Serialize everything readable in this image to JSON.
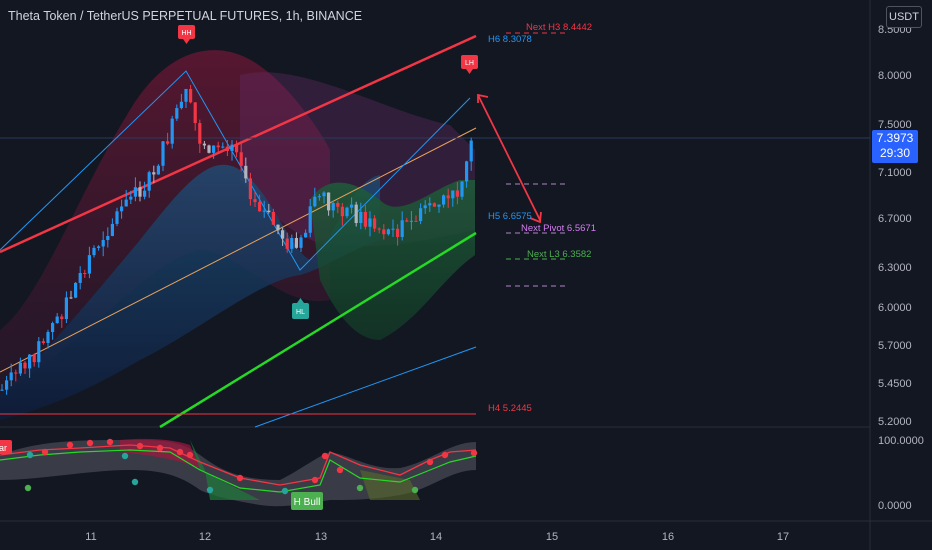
{
  "header": {
    "title": "Theta Token / TetherUS PERPETUAL FUTURES, 1h, BINANCE",
    "currency": "USDT"
  },
  "price_badge": {
    "price": "7.3973",
    "countdown": "29:30"
  },
  "chart_data": {
    "type": "candlestick",
    "yaxis": {
      "ticks": [
        "8.5000",
        "8.0000",
        "7.5000",
        "7.1000",
        "6.7000",
        "6.3000",
        "6.0000",
        "5.7000",
        "5.4500",
        "5.2000"
      ]
    },
    "xaxis": {
      "ticks": [
        "11",
        "12",
        "13",
        "14",
        "15",
        "16",
        "17"
      ]
    },
    "levels": [
      {
        "label": "Next H3 8.4442",
        "value": 8.4442,
        "color": "#f23645"
      },
      {
        "label": "H6 8.3078",
        "value": 8.3078,
        "color": "#2196f3"
      },
      {
        "label": "H5 6.6575",
        "value": 6.6575,
        "color": "#2196f3"
      },
      {
        "label": "Next Pivot 6.5671",
        "value": 6.5671,
        "color": "#d47ff0"
      },
      {
        "label": "Next L3 6.3582",
        "value": 6.3582,
        "color": "#4caf50"
      },
      {
        "label": "H4 5.2445",
        "value": 5.2445,
        "color": "#f23645"
      }
    ],
    "markers": [
      {
        "label": "HH",
        "color": "#f23645"
      },
      {
        "label": "LH",
        "color": "#f23645"
      },
      {
        "label": "HL",
        "color": "#26a69a"
      }
    ],
    "osc_ticks": [
      "100.0000",
      "0.0000"
    ],
    "osc_label": "H Bull",
    "osc_left_tag": "ar"
  },
  "colors": {
    "bull": "#2196f3",
    "bear": "#f23645",
    "neutral": "#b2b5be",
    "accent": "#2962ff"
  }
}
